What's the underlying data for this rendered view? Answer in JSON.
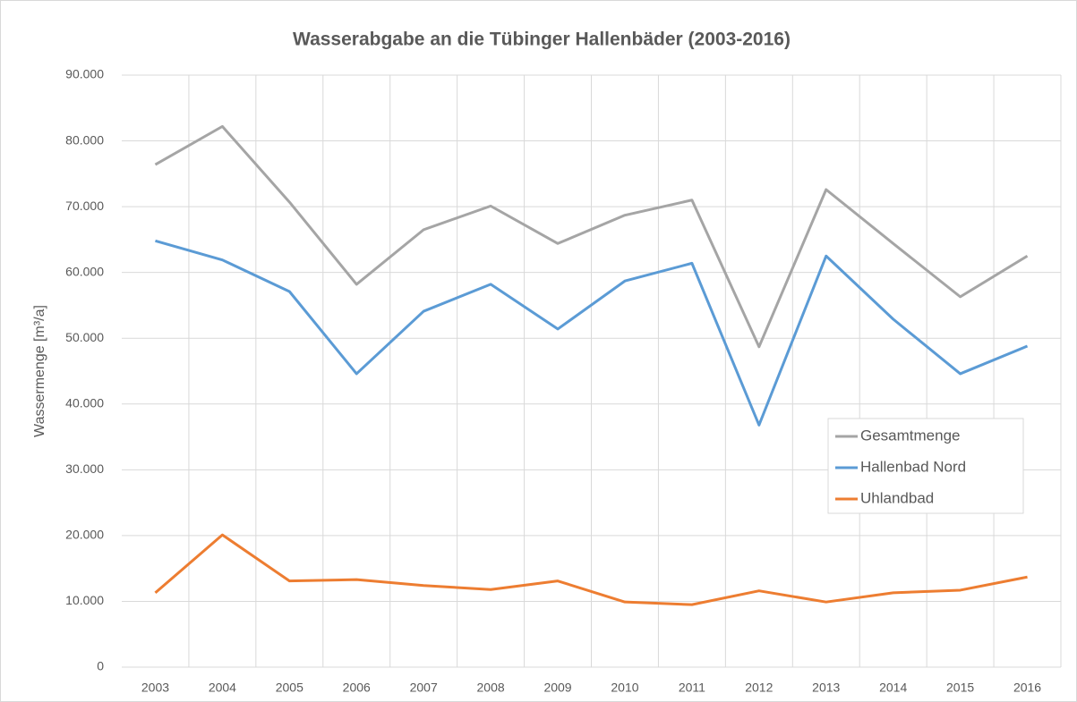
{
  "chart_data": {
    "type": "line",
    "title": "Wasserabgabe an die Tübinger Hallenbäder (2003-2016)",
    "y_label": "Wassermenge [m³/a]",
    "categories": [
      "2003",
      "2004",
      "2005",
      "2006",
      "2007",
      "2008",
      "2009",
      "2010",
      "2011",
      "2012",
      "2013",
      "2014",
      "2015",
      "2016"
    ],
    "series": [
      {
        "name": "Gesamtmenge",
        "color": "#a5a5a5",
        "values": [
          76400,
          82200,
          70700,
          58200,
          66500,
          70100,
          64400,
          68700,
          71000,
          48700,
          72600,
          64400,
          56300,
          62500
        ]
      },
      {
        "name": "Hallenbad Nord",
        "color": "#5b9bd5",
        "values": [
          64800,
          61900,
          57100,
          44600,
          54100,
          58200,
          51400,
          58700,
          61400,
          36800,
          62500,
          52900,
          44600,
          48800
        ]
      },
      {
        "name": "Uhlandbad",
        "color": "#ed7d31",
        "values": [
          11300,
          20100,
          13100,
          13300,
          12400,
          11800,
          13100,
          9900,
          9500,
          11600,
          9900,
          11300,
          11700,
          13700
        ]
      }
    ],
    "ylim": [
      0,
      90000
    ],
    "yticks": [
      0,
      {
        "value": 10000,
        "label": "10.000"
      },
      {
        "value": 20000,
        "label": "20.000"
      },
      {
        "value": 30000,
        "label": "30.000"
      },
      {
        "value": 40000,
        "label": "40.000"
      },
      {
        "value": 50000,
        "label": "50.000"
      },
      {
        "value": 60000,
        "label": "60.000"
      },
      {
        "value": 70000,
        "label": "70.000"
      },
      {
        "value": 80000,
        "label": "80.000"
      },
      {
        "value": 90000,
        "label": "90.000"
      }
    ],
    "grid": true
  }
}
